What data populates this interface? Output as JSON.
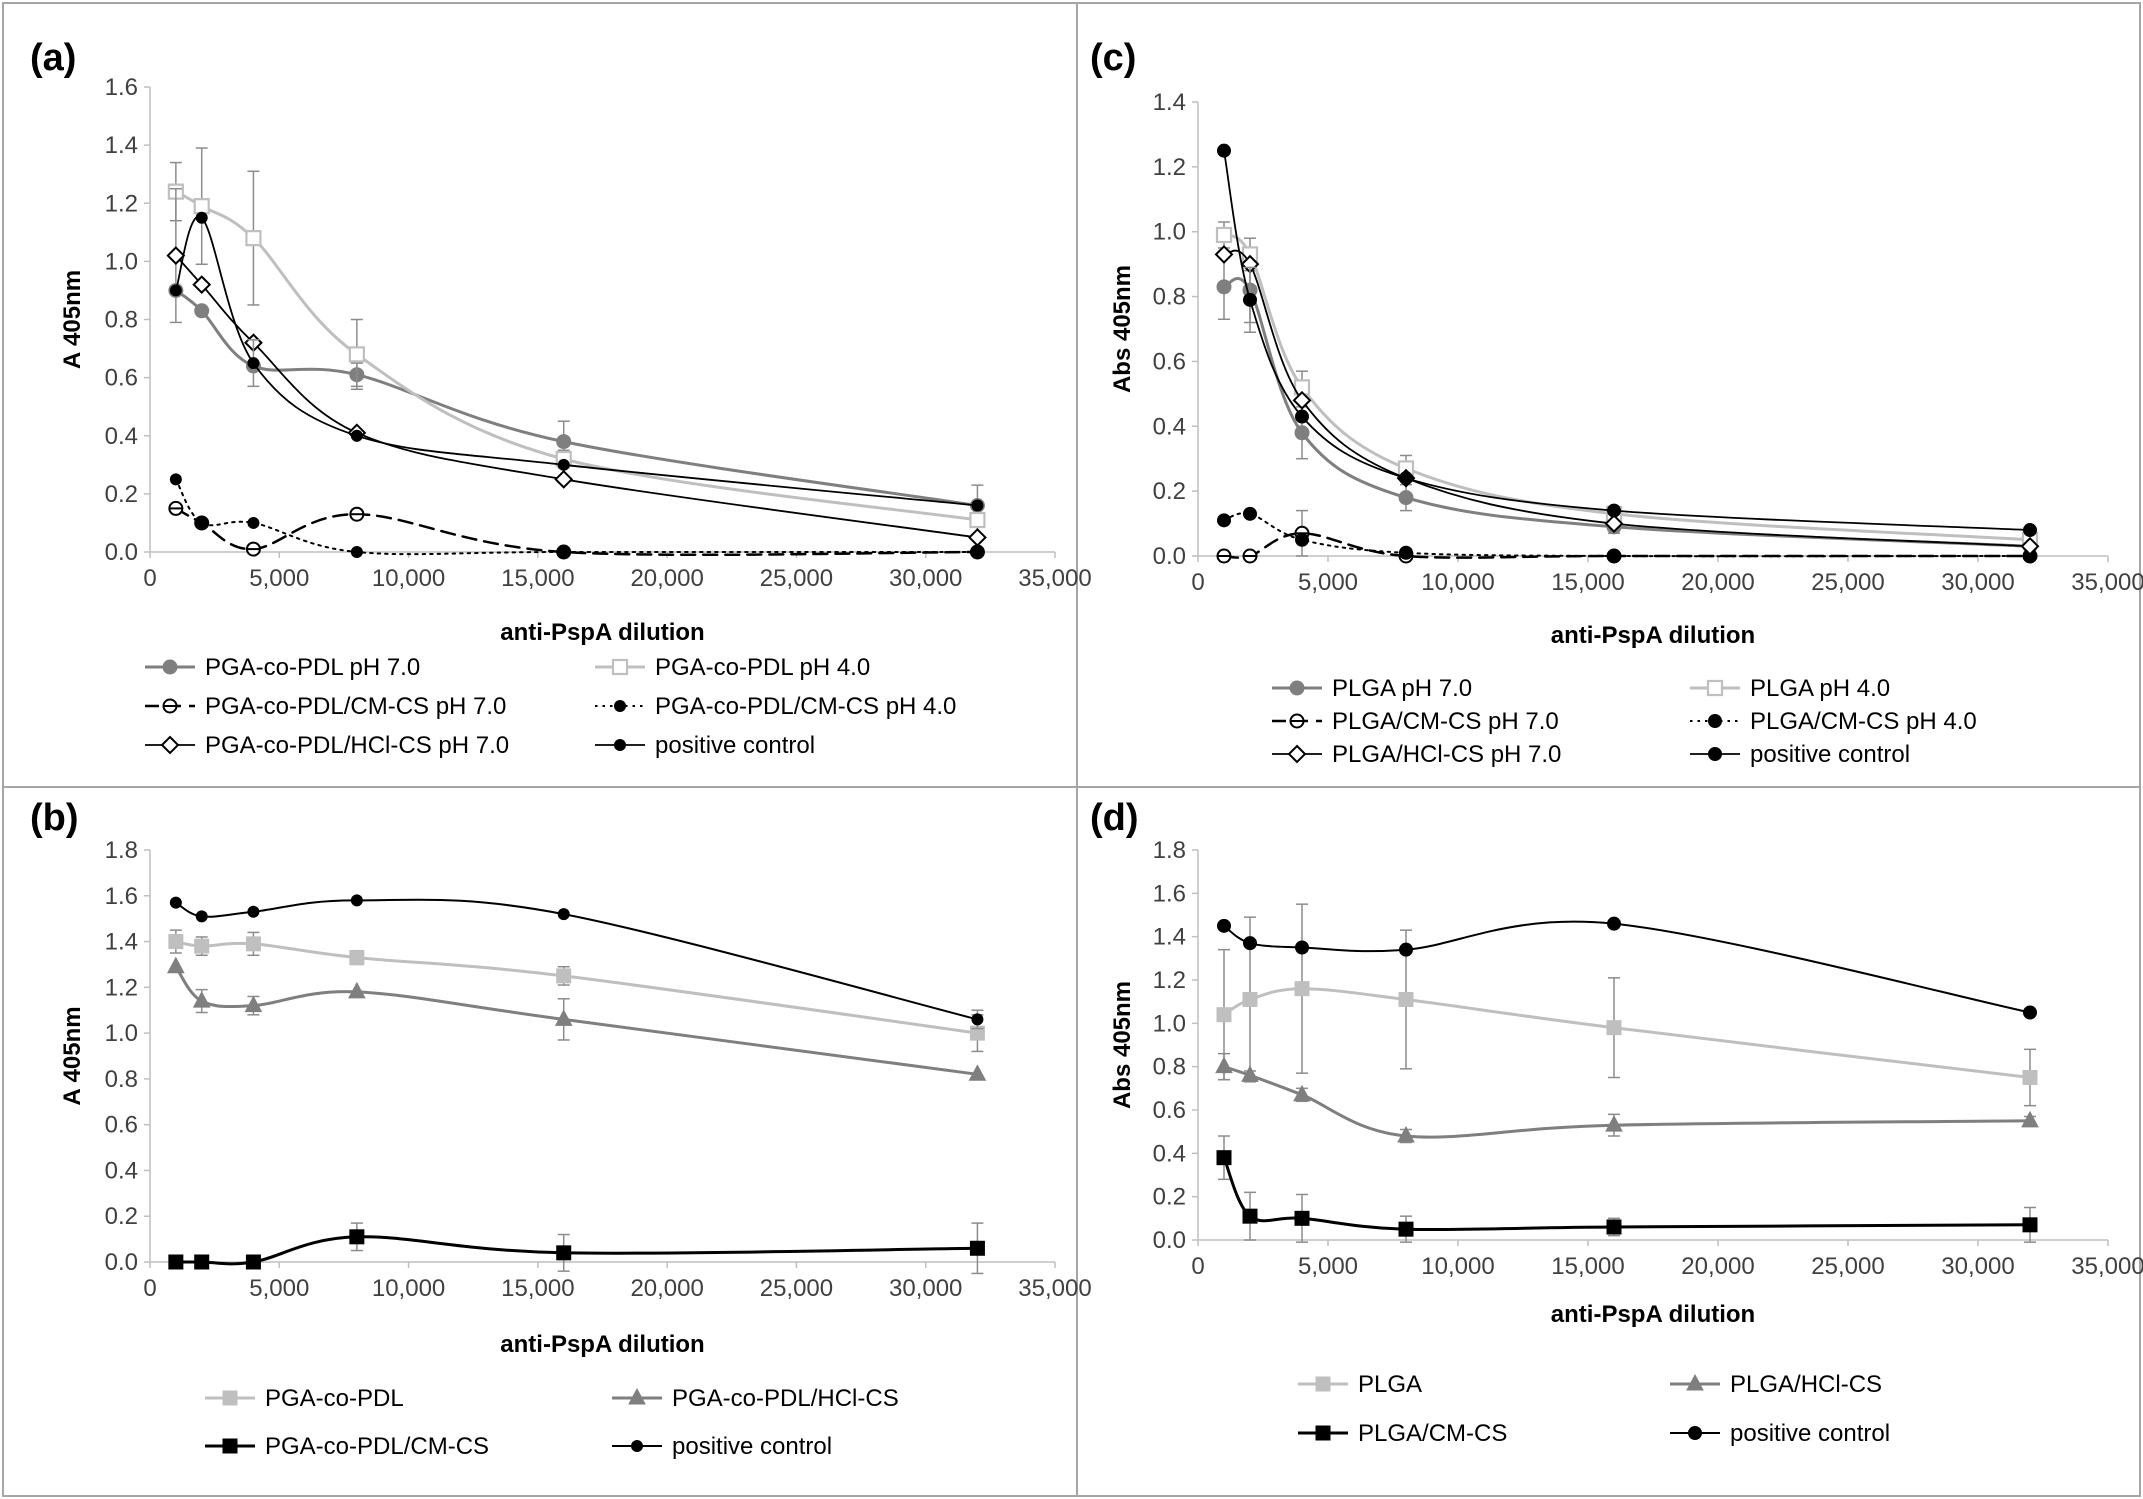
{
  "colors": {
    "dark": "#000000",
    "mid": "#7f7f7f",
    "light": "#bfbfbf",
    "frame": "#a6a6a6"
  },
  "chart_data": [
    {
      "panel": "(a)",
      "type": "line",
      "xlabel": "anti-PspA dilution",
      "ylabel": "A 405nm",
      "xlim": [
        0,
        35000
      ],
      "ylim": [
        0,
        1.6
      ],
      "ystep": 0.2,
      "ydecimals": 1,
      "xticks": [
        "0",
        "5,000",
        "10,000",
        "15,000",
        "20,000",
        "25,000",
        "30,000",
        "35,000"
      ],
      "yticks": [
        "0.0",
        "0.2",
        "0.4",
        "0.6",
        "0.8",
        "1.0",
        "1.2",
        "1.4",
        "1.6"
      ],
      "series": [
        {
          "name": "PGA-co-PDL pH 7.0",
          "x": [
            1000,
            2000,
            4000,
            8000,
            16000,
            32000
          ],
          "y": [
            0.9,
            0.83,
            0.64,
            0.61,
            0.38,
            0.16
          ],
          "err": [
            0,
            0,
            0,
            0.04,
            0.07,
            0.07
          ],
          "color": "mid",
          "dash": "solid",
          "marker": "circle-filled",
          "width": 3
        },
        {
          "name": "PGA-co-PDL pH 4.0",
          "x": [
            1000,
            2000,
            4000,
            8000,
            16000,
            32000
          ],
          "y": [
            1.24,
            1.19,
            1.08,
            0.68,
            0.32,
            0.11
          ],
          "err": [
            0.1,
            0.2,
            0.23,
            0.12,
            0.03,
            0.05
          ],
          "color": "light",
          "dash": "solid",
          "marker": "square-open",
          "width": 3
        },
        {
          "name": "PGA-co-PDL/CM-CS pH 7.0",
          "x": [
            1000,
            2000,
            4000,
            8000,
            16000,
            32000
          ],
          "y": [
            0.15,
            0.1,
            0.01,
            0.13,
            0.0,
            0.0
          ],
          "err": [
            0,
            0,
            0,
            0,
            0,
            0
          ],
          "color": "dark",
          "dash": "dash",
          "marker": "circle-half",
          "width": 2.5
        },
        {
          "name": "PGA-co-PDL/CM-CS pH 4.0",
          "x": [
            1000,
            2000,
            4000,
            8000,
            16000,
            32000
          ],
          "y": [
            0.25,
            0.1,
            0.1,
            0.0,
            0.0,
            0.0
          ],
          "err": [
            0,
            0,
            0,
            0,
            0,
            0
          ],
          "color": "dark",
          "dash": "dot",
          "marker": "circle-small",
          "width": 2
        },
        {
          "name": "PGA-co-PDL/HCl-CS pH 7.0",
          "x": [
            1000,
            2000,
            4000,
            8000,
            16000,
            32000
          ],
          "y": [
            1.02,
            0.92,
            0.72,
            0.41,
            0.25,
            0.05
          ],
          "err": [
            0.23,
            0,
            0,
            0,
            0,
            0
          ],
          "color": "dark",
          "dash": "solid",
          "marker": "diamond-open",
          "width": 1.8
        },
        {
          "name": "positive control",
          "x": [
            1000,
            2000,
            4000,
            8000,
            16000,
            32000
          ],
          "y": [
            0.9,
            1.15,
            0.65,
            0.4,
            0.3,
            0.16
          ],
          "err": [
            0,
            0,
            0.08,
            0,
            0,
            0
          ],
          "color": "dark",
          "dash": "solid",
          "marker": "circle-small",
          "width": 1.8
        }
      ]
    },
    {
      "panel": "(b)",
      "type": "line",
      "xlabel": "anti-PspA dilution",
      "ylabel": "A 405nm",
      "xlim": [
        0,
        35000
      ],
      "ylim": [
        0,
        1.8
      ],
      "ystep": 0.2,
      "ydecimals": 1,
      "xticks": [
        "0",
        "5,000",
        "10,000",
        "15,000",
        "20,000",
        "25,000",
        "30,000",
        "35,000"
      ],
      "yticks": [
        "0.0",
        "0.2",
        "0.4",
        "0.6",
        "0.8",
        "1.0",
        "1.2",
        "1.4",
        "1.6",
        "1.8"
      ],
      "series": [
        {
          "name": "PGA-co-PDL",
          "x": [
            1000,
            2000,
            4000,
            8000,
            16000,
            32000
          ],
          "y": [
            1.4,
            1.38,
            1.39,
            1.33,
            1.25,
            1.0
          ],
          "err": [
            0.05,
            0.04,
            0.05,
            0.03,
            0.04,
            0.08
          ],
          "color": "light",
          "dash": "solid",
          "marker": "square-filled",
          "width": 3
        },
        {
          "name": "PGA-co-PDL/HCl-CS",
          "x": [
            1000,
            2000,
            4000,
            8000,
            16000,
            32000
          ],
          "y": [
            1.29,
            1.14,
            1.12,
            1.18,
            1.06,
            0.82
          ],
          "err": [
            0,
            0.05,
            0.04,
            0,
            0.09,
            0
          ],
          "color": "mid",
          "dash": "solid",
          "marker": "triangle-filled",
          "width": 3
        },
        {
          "name": "PGA-co-PDL/CM-CS",
          "x": [
            1000,
            2000,
            4000,
            8000,
            16000,
            32000
          ],
          "y": [
            0.0,
            0.0,
            0.0,
            0.11,
            0.04,
            0.06
          ],
          "err": [
            0,
            0,
            0,
            0.06,
            0.08,
            0.11
          ],
          "color": "dark",
          "dash": "solid",
          "marker": "square-filled",
          "width": 3
        },
        {
          "name": "positive control",
          "x": [
            1000,
            2000,
            4000,
            8000,
            16000,
            32000
          ],
          "y": [
            1.57,
            1.51,
            1.53,
            1.58,
            1.52,
            1.06
          ],
          "err": [
            0,
            0,
            0,
            0,
            0,
            0.04
          ],
          "color": "dark",
          "dash": "solid",
          "marker": "circle-small",
          "width": 2
        }
      ]
    },
    {
      "panel": "(c)",
      "type": "line",
      "xlabel": "anti-PspA dilution",
      "ylabel": "Abs 405nm",
      "xlim": [
        0,
        35000
      ],
      "ylim": [
        0,
        1.4
      ],
      "ystep": 0.2,
      "ydecimals": 1,
      "xticks": [
        "0",
        "5,000",
        "10,000",
        "15,000",
        "20,000",
        "25,000",
        "30,000",
        "35,000"
      ],
      "yticks": [
        "0.0",
        "0.2",
        "0.4",
        "0.6",
        "0.8",
        "1.0",
        "1.2",
        "1.4"
      ],
      "series": [
        {
          "name": "PLGA pH 7.0",
          "x": [
            1000,
            2000,
            4000,
            8000,
            16000,
            32000
          ],
          "y": [
            0.83,
            0.82,
            0.38,
            0.18,
            0.09,
            0.03
          ],
          "err": [
            0.1,
            0.1,
            0.08,
            0.04,
            0.02,
            0.01
          ],
          "color": "mid",
          "dash": "solid",
          "marker": "circle-filled",
          "width": 3
        },
        {
          "name": "PLGA pH 4.0",
          "x": [
            1000,
            2000,
            4000,
            8000,
            16000,
            32000
          ],
          "y": [
            0.99,
            0.93,
            0.52,
            0.27,
            0.13,
            0.05
          ],
          "err": [
            0.04,
            0.05,
            0.05,
            0.04,
            0.02,
            0.01
          ],
          "color": "light",
          "dash": "solid",
          "marker": "square-open",
          "width": 3
        },
        {
          "name": "PLGA/CM-CS pH 7.0",
          "x": [
            1000,
            2000,
            4000,
            8000,
            16000,
            32000
          ],
          "y": [
            0.0,
            0.0,
            0.07,
            0.0,
            0.0,
            0.0
          ],
          "err": [
            0,
            0,
            0.07,
            0,
            0,
            0
          ],
          "color": "dark",
          "dash": "dash",
          "marker": "circle-half",
          "width": 2.5
        },
        {
          "name": "PLGA/CM-CS pH 4.0",
          "x": [
            1000,
            2000,
            4000,
            8000,
            16000,
            32000
          ],
          "y": [
            0.11,
            0.13,
            0.05,
            0.01,
            0.0,
            0.0
          ],
          "err": [
            0,
            0,
            0,
            0,
            0,
            0
          ],
          "color": "dark",
          "dash": "dot",
          "marker": "circle-filled-black",
          "width": 2
        },
        {
          "name": "PLGA/HCl-CS pH 7.0",
          "x": [
            1000,
            2000,
            4000,
            8000,
            16000,
            32000
          ],
          "y": [
            0.93,
            0.9,
            0.48,
            0.24,
            0.1,
            0.03
          ],
          "err": [
            0,
            0,
            0,
            0,
            0,
            0
          ],
          "color": "dark",
          "dash": "solid",
          "marker": "diamond-open",
          "width": 1.8
        },
        {
          "name": "positive control",
          "x": [
            1000,
            2000,
            4000,
            8000,
            16000,
            32000
          ],
          "y": [
            1.25,
            0.79,
            0.43,
            0.24,
            0.14,
            0.08
          ],
          "err": [
            0,
            0.1,
            0,
            0,
            0,
            0
          ],
          "color": "dark",
          "dash": "solid",
          "marker": "circle-filled-black",
          "width": 1.8
        }
      ]
    },
    {
      "panel": "(d)",
      "type": "line",
      "xlabel": "anti-PspA dilution",
      "ylabel": "Abs 405nm",
      "xlim": [
        0,
        35000
      ],
      "ylim": [
        0,
        1.8
      ],
      "ystep": 0.2,
      "ydecimals": 1,
      "xticks": [
        "0",
        "5,000",
        "10,000",
        "15,000",
        "20,000",
        "25,000",
        "30,000",
        "35,000"
      ],
      "yticks": [
        "0.0",
        "0.2",
        "0.4",
        "0.6",
        "0.8",
        "1.0",
        "1.2",
        "1.4",
        "1.6",
        "1.8"
      ],
      "series": [
        {
          "name": "PLGA",
          "x": [
            1000,
            2000,
            4000,
            8000,
            16000,
            32000
          ],
          "y": [
            1.04,
            1.11,
            1.16,
            1.11,
            0.98,
            0.75
          ],
          "err": [
            0.3,
            0.38,
            0.39,
            0.32,
            0.23,
            0.13
          ],
          "color": "light",
          "dash": "solid",
          "marker": "square-filled",
          "width": 3
        },
        {
          "name": "PLGA/HCl-CS",
          "x": [
            1000,
            2000,
            4000,
            8000,
            16000,
            32000
          ],
          "y": [
            0.8,
            0.76,
            0.67,
            0.48,
            0.53,
            0.55
          ],
          "err": [
            0.06,
            0.02,
            0.03,
            0.03,
            0.05,
            0.02
          ],
          "color": "mid",
          "dash": "solid",
          "marker": "triangle-filled",
          "width": 3
        },
        {
          "name": "PLGA/CM-CS",
          "x": [
            1000,
            2000,
            4000,
            8000,
            16000,
            32000
          ],
          "y": [
            0.38,
            0.11,
            0.1,
            0.05,
            0.06,
            0.07
          ],
          "err": [
            0.1,
            0.11,
            0.11,
            0.06,
            0.04,
            0.08
          ],
          "color": "dark",
          "dash": "solid",
          "marker": "square-filled",
          "width": 3
        },
        {
          "name": "positive control",
          "x": [
            1000,
            2000,
            4000,
            8000,
            16000,
            32000
          ],
          "y": [
            1.45,
            1.37,
            1.35,
            1.34,
            1.46,
            1.05
          ],
          "err": [
            0,
            0,
            0,
            0,
            0,
            0
          ],
          "color": "dark",
          "dash": "solid",
          "marker": "circle-filled-black",
          "width": 2
        }
      ]
    }
  ]
}
